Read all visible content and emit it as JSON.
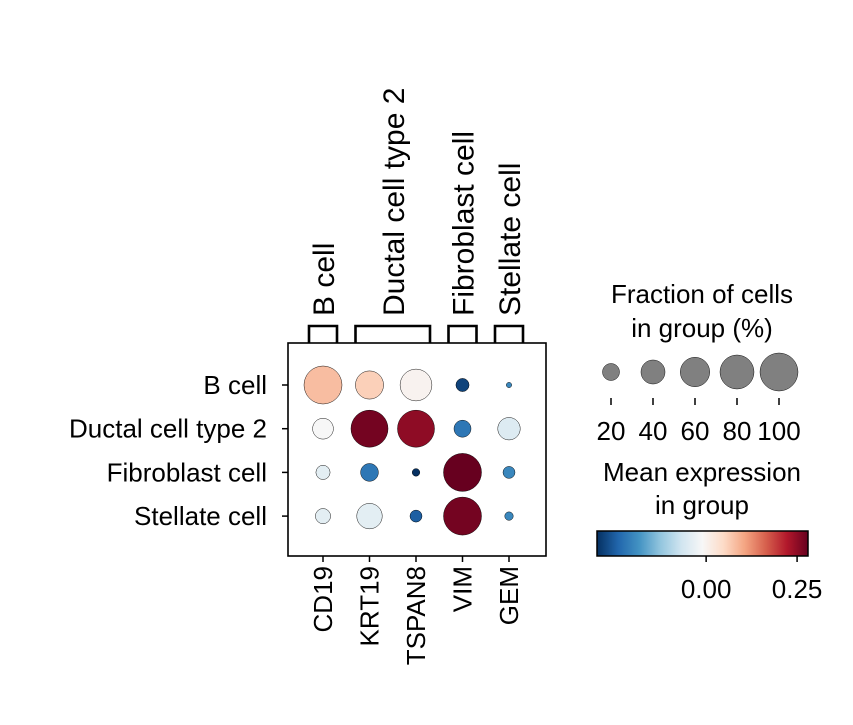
{
  "chart_data": {
    "type": "dotplot",
    "groups": [
      "B cell",
      "Ductal cell type 2",
      "Fibroblast cell",
      "Stellate cell"
    ],
    "genes": [
      "CD19",
      "KRT19",
      "TSPAN8",
      "VIM",
      "GEM"
    ],
    "gene_groups": [
      {
        "label": "B cell",
        "genes": [
          "CD19"
        ]
      },
      {
        "label": "Ductal cell type 2",
        "genes": [
          "KRT19",
          "TSPAN8"
        ]
      },
      {
        "label": "Fibroblast cell",
        "genes": [
          "VIM"
        ]
      },
      {
        "label": "Stellate cell",
        "genes": [
          "GEM"
        ]
      }
    ],
    "fraction_pct": [
      [
        100,
        55,
        70,
        12,
        2
      ],
      [
        30,
        95,
        95,
        20,
        35
      ],
      [
        14,
        22,
        4,
        100,
        10
      ],
      [
        16,
        45,
        10,
        100,
        5
      ]
    ],
    "mean_expression": [
      [
        0.08,
        0.06,
        0.0,
        -0.28,
        -0.2
      ],
      [
        -0.01,
        0.27,
        0.25,
        -0.22,
        -0.05
      ],
      [
        -0.04,
        -0.22,
        -0.3,
        0.28,
        -0.2
      ],
      [
        -0.04,
        -0.04,
        -0.25,
        0.27,
        -0.2
      ]
    ],
    "size_legend": {
      "title_line1": "Fraction of cells",
      "title_line2": "in group (%)",
      "ticks": [
        "20",
        "40",
        "60",
        "80",
        "100"
      ],
      "values": [
        20,
        40,
        60,
        80,
        100
      ]
    },
    "color_legend": {
      "title_line1": "Mean expression",
      "title_line2": "in group",
      "colormap": "RdBu_r",
      "vmin": -0.3,
      "vmax": 0.28,
      "ticks": [
        "0.00",
        "0.25"
      ],
      "tick_values": [
        0.0,
        0.25
      ]
    }
  }
}
